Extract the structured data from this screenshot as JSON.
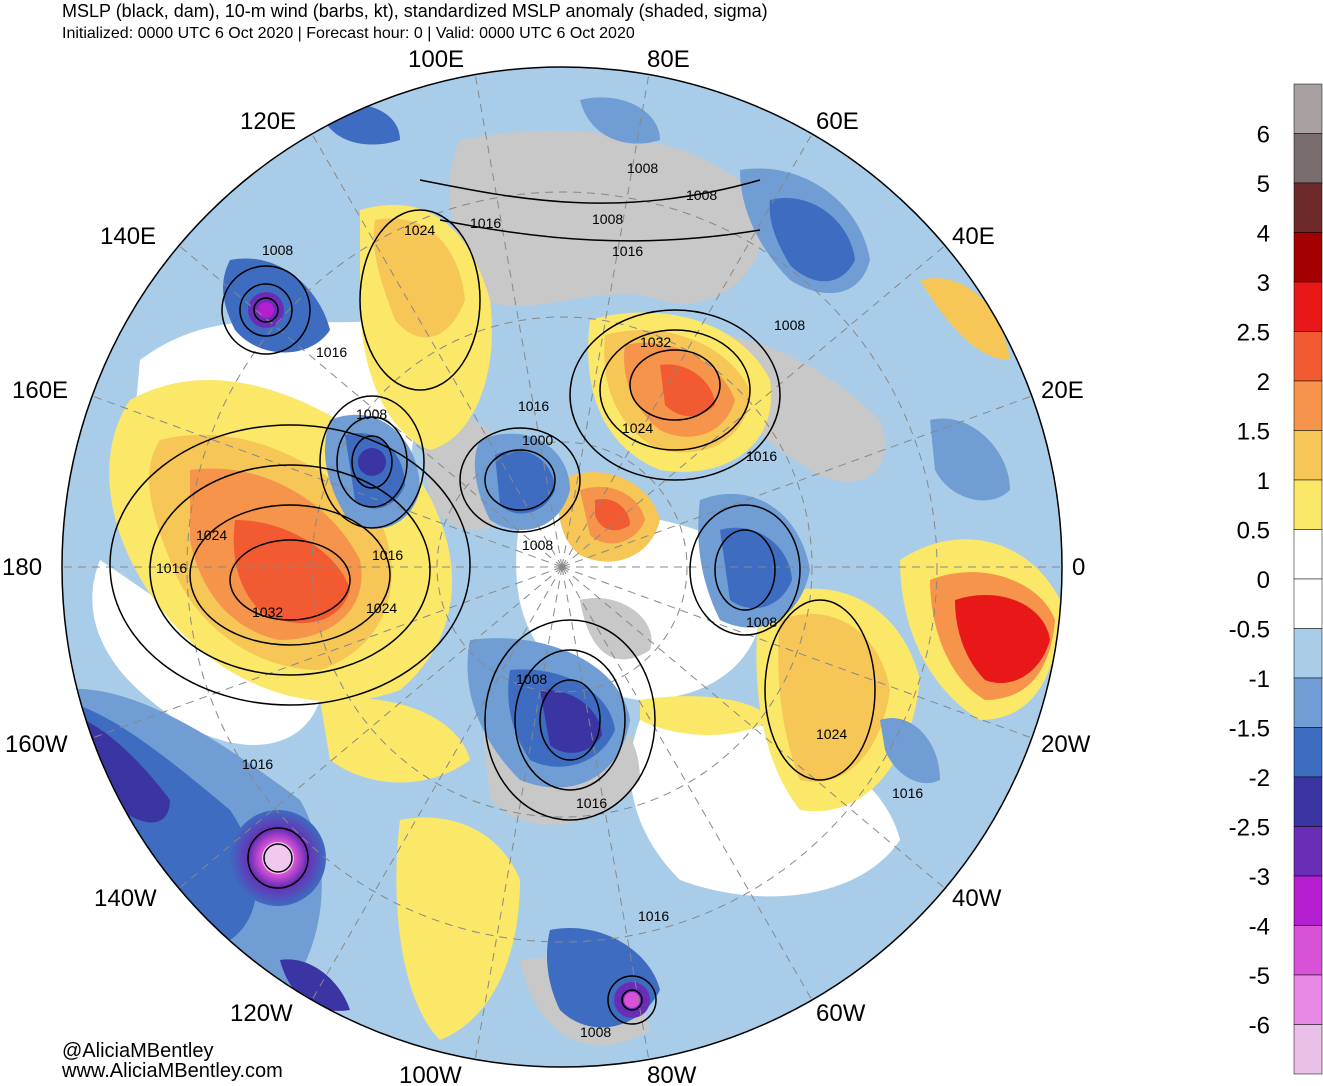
{
  "header": {
    "title": "MSLP (black, dam), 10-m wind (barbs, kt), standardized MSLP anomaly (shaded, sigma)",
    "subtitle": "Initialized: 0000 UTC 6 Oct 2020 | Forecast hour: 0 | Valid: 0000 UTC 6 Oct 2020"
  },
  "credits": {
    "handle": "@AliciaMBentley",
    "site": "www.AliciaMBentley.com"
  },
  "map": {
    "projection": "north polar stereographic",
    "longitude_labels": [
      {
        "text": "100E",
        "lon": 100
      },
      {
        "text": "80E",
        "lon": 80
      },
      {
        "text": "60E",
        "lon": 60
      },
      {
        "text": "40E",
        "lon": 40
      },
      {
        "text": "20E",
        "lon": 20
      },
      {
        "text": "0",
        "lon": 0
      },
      {
        "text": "20W",
        "lon": -20
      },
      {
        "text": "40W",
        "lon": -40
      },
      {
        "text": "60W",
        "lon": -60
      },
      {
        "text": "80W",
        "lon": -80
      },
      {
        "text": "100W",
        "lon": -100
      },
      {
        "text": "120W",
        "lon": -120
      },
      {
        "text": "140W",
        "lon": -140
      },
      {
        "text": "160W",
        "lon": -160
      },
      {
        "text": "180",
        "lon": 180
      },
      {
        "text": "160E",
        "lon": 160
      },
      {
        "text": "140E",
        "lon": 140
      },
      {
        "text": "120E",
        "lon": 120
      }
    ],
    "isobar_labels": [
      "1008",
      "1008",
      "1008",
      "1016",
      "1008",
      "1024",
      "1016",
      "1032",
      "1008",
      "1016",
      "1008",
      "1016",
      "1024",
      "1000",
      "1016",
      "1024",
      "1016",
      "1008",
      "1032",
      "1024",
      "1008",
      "1008",
      "1016",
      "1024",
      "1016",
      "1016",
      "1016",
      "1016",
      "1008"
    ]
  },
  "colorbar": {
    "labels": [
      "6",
      "5",
      "4",
      "3",
      "2.5",
      "2",
      "1.5",
      "1",
      "0.5",
      "0",
      "-0.5",
      "-1",
      "-1.5",
      "-2",
      "-2.5",
      "-3",
      "-4",
      "-5",
      "-6"
    ],
    "colors": [
      "#a9a1a1",
      "#7a6d6d",
      "#6e2a2a",
      "#a40000",
      "#e81818",
      "#f25a32",
      "#f5944a",
      "#f6c657",
      "#fbe869",
      "#ffffff",
      "#ffffff",
      "#a9cde8",
      "#6f9dd4",
      "#3d6cc0",
      "#3b35a3",
      "#6a2eb6",
      "#b41ed0",
      "#d852d8",
      "#e889e6",
      "#e8c0e8"
    ]
  },
  "colors": {
    "land": "#c8c8c8",
    "gridline": "#888888",
    "isobar": "#000000"
  }
}
